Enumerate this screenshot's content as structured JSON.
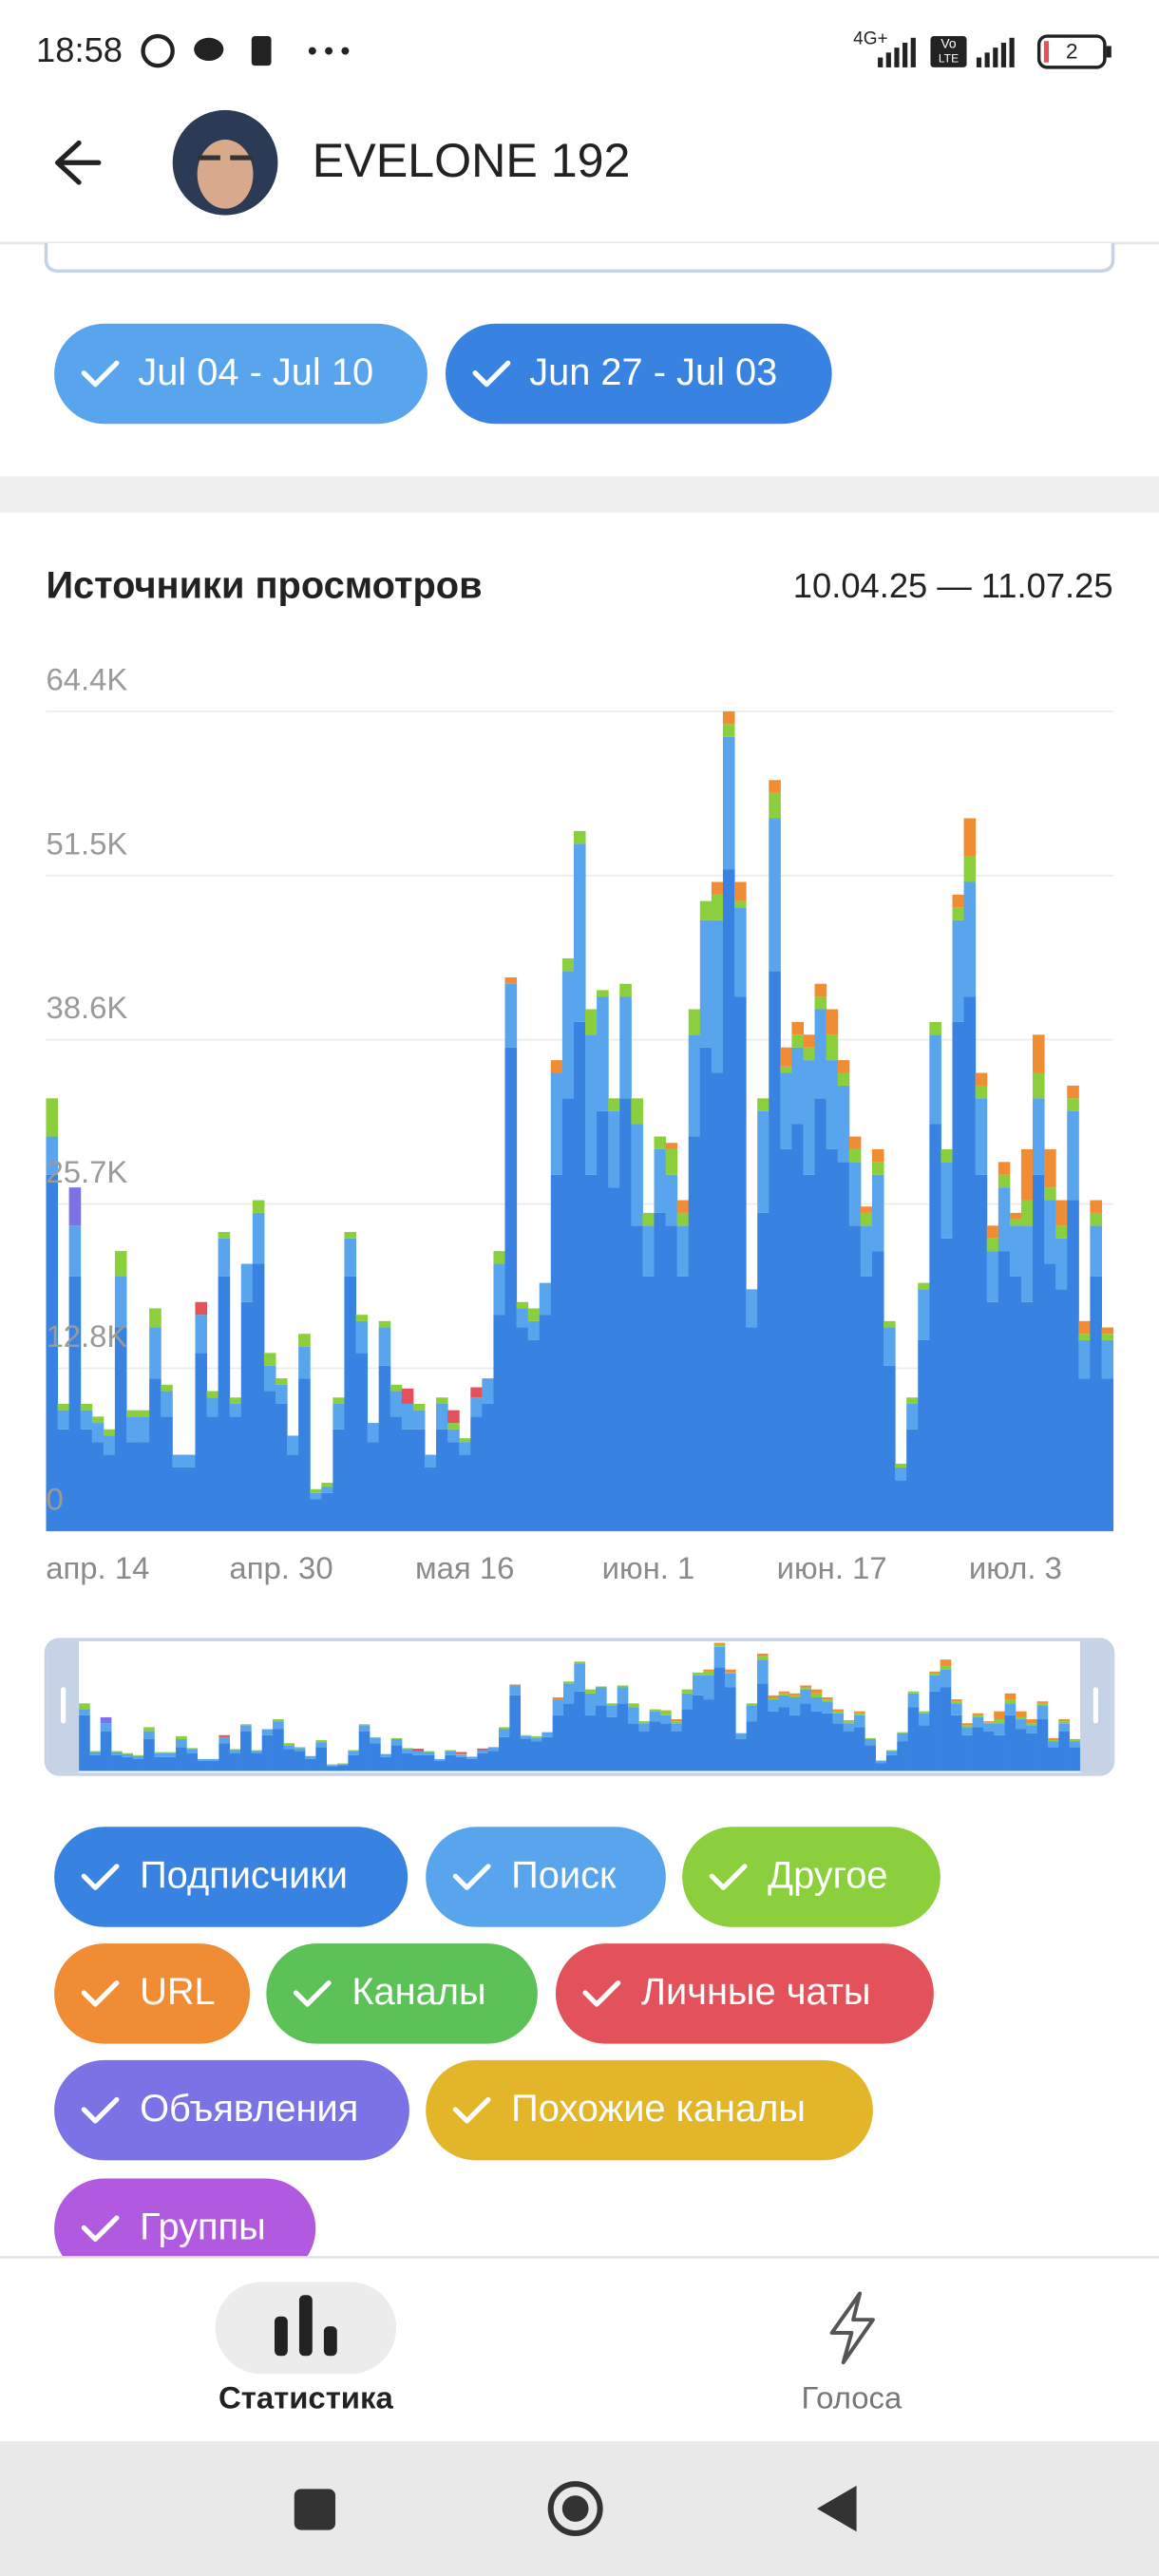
{
  "status": {
    "time": "18:58",
    "network": "4G+",
    "volte": [
      "Vo",
      "LTE"
    ],
    "battery": "2"
  },
  "header": {
    "title": "EVELONE 192"
  },
  "period_chips": [
    "Jul 04 - Jul 10",
    "Jun 27 - Jul 03"
  ],
  "chart_data": {
    "type": "stacked_bar",
    "title": "Источники просмотров",
    "subtitle": "10.04.25 — 11.07.25",
    "categories": [
      null,
      null,
      null,
      null,
      "апр. 14",
      null,
      null,
      null,
      null,
      null,
      null,
      null,
      null,
      null,
      null,
      null,
      null,
      null,
      null,
      null,
      "апр. 30",
      null,
      null,
      null,
      null,
      null,
      null,
      null,
      null,
      null,
      null,
      null,
      null,
      null,
      null,
      null,
      "мая 16",
      null,
      null,
      null,
      null,
      null,
      null,
      null,
      null,
      null,
      null,
      null,
      null,
      null,
      null,
      null,
      "июн. 1",
      null,
      null,
      null,
      null,
      null,
      null,
      null,
      null,
      null,
      null,
      null,
      null,
      null,
      null,
      null,
      "июн. 17",
      null,
      null,
      null,
      null,
      null,
      null,
      null,
      null,
      null,
      null,
      null,
      null,
      null,
      null,
      null,
      "июл. 3",
      null,
      null,
      null,
      null,
      null,
      null,
      null,
      null
    ],
    "ylim": [
      0,
      64.4
    ],
    "yticks": [
      0,
      {
        "value": 12.8,
        "label": "12.8K"
      },
      {
        "value": 25.7,
        "label": "25.7K"
      },
      {
        "value": 38.6,
        "label": "38.6K"
      },
      {
        "value": 51.5,
        "label": "51.5K"
      },
      {
        "value": 64.4,
        "label": "64.4K"
      }
    ],
    "grid": true,
    "series": [
      {
        "name": "Подписчики",
        "color": "#3883e2",
        "values": [
          28,
          8,
          20,
          8,
          7,
          6,
          16,
          7,
          7,
          12,
          9,
          5,
          5,
          14,
          9,
          20,
          9,
          18,
          21,
          11,
          10,
          6,
          12,
          2.5,
          3,
          8,
          20,
          14,
          7,
          13,
          9,
          8,
          8,
          5,
          8,
          7,
          6,
          9,
          10,
          17,
          38,
          16,
          15,
          17,
          28,
          34,
          40,
          28,
          33,
          27,
          34,
          24,
          20,
          25,
          24,
          20,
          31,
          38,
          36,
          52,
          42,
          16,
          25,
          44,
          30,
          32,
          28,
          34,
          30,
          29,
          24,
          20,
          22,
          13,
          4,
          8,
          15,
          32,
          23,
          40,
          42,
          28,
          18,
          22,
          20,
          18,
          28,
          21,
          19,
          26,
          12,
          20,
          12
        ]
      },
      {
        "name": "Поиск",
        "color": "#58a5ee",
        "values": [
          3,
          1.5,
          4,
          1.5,
          1.5,
          1.5,
          4,
          2,
          2,
          4,
          2,
          1,
          1,
          3,
          1.5,
          3,
          1,
          3,
          4,
          2,
          1.5,
          1.5,
          2.5,
          0.5,
          0.5,
          2,
          3,
          2.5,
          1.5,
          3,
          2,
          2,
          1.5,
          1,
          2,
          1,
          1,
          1.5,
          2,
          4,
          5,
          1.5,
          1.5,
          2.5,
          8,
          10,
          14,
          11,
          9,
          6,
          8,
          8,
          4,
          5,
          4,
          4,
          8,
          10,
          12,
          10.4,
          7,
          3,
          8,
          12,
          6,
          6,
          9,
          7,
          7,
          6,
          5,
          4,
          6,
          3,
          1,
          2,
          4,
          7,
          6,
          8,
          9,
          6,
          4,
          5,
          4,
          6,
          6,
          5,
          4,
          7,
          3,
          4,
          3
        ]
      },
      {
        "name": "Другое",
        "color": "#8ccf3c",
        "values": [
          3,
          0.5,
          0,
          0.5,
          0.5,
          0.5,
          2,
          0.5,
          0.5,
          1.5,
          0.5,
          0,
          0,
          0,
          0.5,
          0.5,
          0.5,
          0,
          1,
          1,
          0.5,
          0,
          1,
          0.3,
          0.3,
          0.5,
          0.5,
          0.5,
          0,
          0.5,
          0.5,
          0,
          0.5,
          0,
          0.5,
          0.5,
          0.3,
          0,
          0,
          1,
          0,
          0.5,
          1,
          0,
          0,
          1,
          1,
          2,
          0.5,
          1,
          1,
          2,
          1,
          1,
          2,
          1,
          2,
          1.5,
          2,
          1,
          0.5,
          0,
          1,
          2,
          0.5,
          1,
          1,
          1,
          2,
          1,
          1,
          1,
          1,
          0.5,
          0.3,
          0.5,
          0.5,
          1,
          1,
          1,
          2,
          1,
          1,
          1,
          0.5,
          2,
          2,
          1,
          1,
          1,
          0.5,
          1,
          0.5
        ]
      },
      {
        "name": "URL",
        "color": "#f08c34",
        "values": [
          0,
          0,
          0,
          0,
          0,
          0,
          0,
          0,
          0,
          0,
          0,
          0,
          0,
          0,
          0,
          0,
          0,
          0,
          0,
          0,
          0,
          0,
          0,
          0,
          0,
          0,
          0,
          0,
          0,
          0,
          0,
          0,
          0,
          0,
          0,
          0,
          0,
          0,
          0,
          0,
          0.5,
          0,
          0,
          0,
          1,
          0,
          0,
          0,
          0,
          0,
          0,
          0,
          0,
          0,
          0.5,
          1,
          0,
          0,
          1,
          1,
          1.5,
          0,
          0,
          1,
          1.5,
          1,
          1,
          1,
          2,
          1,
          1,
          0.5,
          1,
          0,
          0,
          0,
          0,
          0,
          0,
          1,
          3,
          1,
          1,
          1,
          0.5,
          4,
          3,
          3,
          2,
          1,
          1,
          1,
          0.5
        ]
      },
      {
        "name": "Каналы",
        "color": "#5cc156",
        "values": [
          0,
          0,
          0,
          0,
          0,
          0,
          0,
          0,
          0,
          0,
          0,
          0,
          0,
          0,
          0,
          0,
          0,
          0,
          0,
          0,
          0,
          0,
          0,
          0,
          0,
          0,
          0,
          0,
          0,
          0,
          0,
          0,
          0,
          0,
          0,
          0,
          0,
          0,
          0,
          0,
          0,
          0,
          0,
          0,
          0,
          0,
          0,
          0,
          0,
          0,
          0,
          0,
          0,
          0,
          0,
          0,
          0,
          0,
          0,
          0,
          0,
          0,
          0,
          0,
          0,
          0,
          0,
          0,
          0,
          0,
          0,
          0,
          0,
          0,
          0,
          0,
          0,
          0,
          0,
          0,
          0,
          0,
          0,
          0,
          0,
          0,
          0,
          0,
          0,
          0,
          0,
          0,
          0
        ]
      },
      {
        "name": "Личные чаты",
        "color": "#e3525a",
        "values": [
          0,
          0,
          0,
          0,
          0,
          0,
          0,
          0,
          0,
          0,
          0,
          0,
          0,
          1,
          0,
          0,
          0,
          0,
          0,
          0,
          0,
          0,
          0,
          0,
          0,
          0,
          0,
          0,
          0,
          0,
          0,
          1.2,
          0,
          0,
          0,
          1,
          0,
          0.8,
          0,
          0,
          0,
          0,
          0,
          0,
          0,
          0,
          0,
          0,
          0,
          0,
          0,
          0,
          0,
          0,
          0,
          0,
          0,
          0,
          0,
          0,
          0,
          0,
          0,
          0,
          0,
          0,
          0,
          0,
          0,
          0,
          0,
          0,
          0,
          0,
          0,
          0,
          0,
          0,
          0,
          0,
          0,
          0,
          0,
          0,
          0,
          0,
          0,
          0,
          0,
          0,
          0,
          0,
          0
        ]
      },
      {
        "name": "Объявления",
        "color": "#7b72e6",
        "values": [
          0,
          0,
          3,
          0,
          0,
          0,
          0,
          0,
          0,
          0,
          0,
          0,
          0,
          0,
          0,
          0,
          0,
          0,
          0,
          0,
          0,
          0,
          0,
          0,
          0,
          0,
          0,
          0,
          0,
          0,
          0,
          0,
          0,
          0,
          0,
          0,
          0,
          0,
          0,
          0,
          0,
          0,
          0,
          0,
          0,
          0,
          0,
          0,
          0,
          0,
          0,
          0,
          0,
          0,
          0,
          0,
          0,
          0,
          0,
          0,
          0,
          0,
          0,
          0,
          0,
          0,
          0,
          0,
          0,
          0,
          0,
          0,
          0,
          0,
          0,
          0,
          0,
          0,
          0,
          0,
          0,
          0,
          0,
          0,
          0,
          0,
          0,
          0,
          0,
          0,
          0,
          0,
          0
        ]
      },
      {
        "name": "Похожие каналы",
        "color": "#e2b628",
        "values": [
          0,
          0,
          0,
          0,
          0,
          0,
          0,
          0,
          0,
          0,
          0,
          0,
          0,
          0,
          0,
          0,
          0,
          0,
          0,
          0,
          0,
          0,
          0,
          0,
          0,
          0,
          0,
          0,
          0,
          0,
          0,
          0,
          0,
          0,
          0,
          0,
          0,
          0,
          0,
          0,
          0,
          0,
          0,
          0,
          0,
          0,
          0,
          0,
          0,
          0,
          0,
          0,
          0,
          0,
          0,
          0,
          0,
          0,
          0,
          0,
          0,
          0,
          0,
          0,
          0,
          0,
          0,
          0,
          0,
          0,
          0,
          0,
          0,
          0,
          0,
          0,
          0,
          0,
          0,
          0,
          0,
          0,
          0,
          0,
          0,
          0,
          0,
          0,
          0,
          0,
          0,
          0,
          0
        ]
      },
      {
        "name": "Группы",
        "color": "#b159df",
        "values": [
          0,
          0,
          0,
          0,
          0,
          0,
          0,
          0,
          0,
          0,
          0,
          0,
          0,
          0,
          0,
          0,
          0,
          0,
          0,
          0,
          0,
          0,
          0,
          0,
          0,
          0,
          0,
          0,
          0,
          0,
          0,
          0,
          0,
          0,
          0,
          0,
          0,
          0,
          0,
          0,
          0,
          0,
          0,
          0,
          0,
          0,
          0,
          0,
          0,
          0,
          0,
          0,
          0,
          0,
          0,
          0,
          0,
          0,
          0,
          0,
          0,
          0,
          0,
          0,
          0,
          0,
          0,
          0,
          0,
          0,
          0,
          0,
          0,
          0,
          0,
          0,
          0,
          0,
          0,
          0,
          0,
          0,
          0,
          0,
          0,
          0,
          0,
          0,
          0,
          0,
          0,
          0,
          0
        ]
      }
    ]
  },
  "nav": [
    {
      "label": "Статистика"
    },
    {
      "label": "Голоса"
    }
  ]
}
